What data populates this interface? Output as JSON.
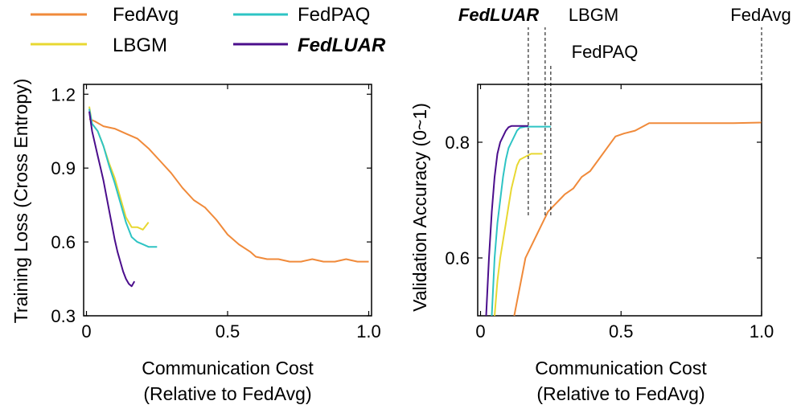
{
  "colors": {
    "FedAvg": "#F08A3A",
    "LBGM": "#E8D832",
    "FedPAQ": "#2EC4C4",
    "FedLUAR": "#4B0E8C"
  },
  "legend": [
    {
      "name": "FedAvg",
      "bold": false
    },
    {
      "name": "FedPAQ",
      "bold": false
    },
    {
      "name": "LBGM",
      "bold": false
    },
    {
      "name": "FedLUAR",
      "bold": true
    }
  ],
  "chart_data": [
    {
      "type": "line",
      "xlabel": "Communication Cost",
      "xlabel2": "(Relative to FedAvg)",
      "ylabel": "Training Loss (Cross Entropy)",
      "xlim": [
        -0.01,
        1.01
      ],
      "ylim": [
        0.3,
        1.24
      ],
      "xticks": [
        0,
        0.5,
        1.0
      ],
      "xtick_labels": [
        "0",
        "0.5",
        "1.0"
      ],
      "yticks": [
        0.3,
        0.6,
        0.9,
        1.2
      ],
      "ytick_labels": [
        "0.3",
        "0.6",
        "0.9",
        "1.2"
      ],
      "series": [
        {
          "name": "FedAvg",
          "x": [
            0.01,
            0.03,
            0.06,
            0.1,
            0.14,
            0.18,
            0.22,
            0.26,
            0.3,
            0.34,
            0.38,
            0.42,
            0.46,
            0.5,
            0.54,
            0.58,
            0.6,
            0.64,
            0.68,
            0.72,
            0.76,
            0.8,
            0.84,
            0.88,
            0.92,
            0.96,
            1.0
          ],
          "y": [
            1.1,
            1.09,
            1.07,
            1.06,
            1.04,
            1.02,
            0.98,
            0.93,
            0.88,
            0.82,
            0.77,
            0.74,
            0.69,
            0.63,
            0.59,
            0.56,
            0.54,
            0.53,
            0.53,
            0.52,
            0.52,
            0.53,
            0.52,
            0.52,
            0.53,
            0.52,
            0.52
          ]
        },
        {
          "name": "LBGM",
          "x": [
            0.01,
            0.02,
            0.04,
            0.06,
            0.08,
            0.1,
            0.12,
            0.14,
            0.16,
            0.18,
            0.2,
            0.22
          ],
          "y": [
            1.15,
            1.08,
            1.05,
            0.99,
            0.92,
            0.86,
            0.78,
            0.7,
            0.66,
            0.66,
            0.65,
            0.68
          ]
        },
        {
          "name": "FedPAQ",
          "x": [
            0.01,
            0.02,
            0.04,
            0.06,
            0.08,
            0.1,
            0.12,
            0.14,
            0.16,
            0.18,
            0.2,
            0.22,
            0.25
          ],
          "y": [
            1.14,
            1.08,
            1.05,
            0.99,
            0.91,
            0.84,
            0.76,
            0.68,
            0.62,
            0.6,
            0.59,
            0.58,
            0.58
          ]
        },
        {
          "name": "FedLUAR",
          "x": [
            0.01,
            0.02,
            0.03,
            0.04,
            0.05,
            0.06,
            0.07,
            0.08,
            0.09,
            0.1,
            0.11,
            0.12,
            0.13,
            0.14,
            0.15,
            0.16,
            0.17
          ],
          "y": [
            1.13,
            1.05,
            1.0,
            0.95,
            0.9,
            0.85,
            0.79,
            0.73,
            0.67,
            0.61,
            0.56,
            0.52,
            0.48,
            0.45,
            0.43,
            0.42,
            0.44
          ]
        }
      ]
    },
    {
      "type": "line",
      "xlabel": "Communication Cost",
      "xlabel2": "(Relative to FedAvg)",
      "ylabel": "Validation Accuracy (0~1)",
      "xlim": [
        -0.01,
        1.0
      ],
      "ylim": [
        0.5,
        0.9
      ],
      "xticks": [
        0,
        0.5,
        1.0
      ],
      "xtick_labels": [
        "0",
        "0.5",
        "1.0"
      ],
      "yticks": [
        0.6,
        0.8
      ],
      "ytick_labels": [
        "0.6",
        "0.8"
      ],
      "series": [
        {
          "name": "FedAvg",
          "x": [
            0.12,
            0.14,
            0.16,
            0.18,
            0.2,
            0.22,
            0.24,
            0.26,
            0.28,
            0.3,
            0.33,
            0.36,
            0.39,
            0.42,
            0.45,
            0.48,
            0.51,
            0.55,
            0.6,
            0.7,
            0.8,
            0.9,
            1.0
          ],
          "y": [
            0.5,
            0.55,
            0.6,
            0.62,
            0.64,
            0.66,
            0.68,
            0.69,
            0.7,
            0.71,
            0.72,
            0.74,
            0.75,
            0.77,
            0.79,
            0.81,
            0.815,
            0.82,
            0.833,
            0.833,
            0.833,
            0.833,
            0.834
          ]
        },
        {
          "name": "LBGM",
          "x": [
            0.05,
            0.06,
            0.07,
            0.08,
            0.09,
            0.1,
            0.11,
            0.12,
            0.13,
            0.14,
            0.16,
            0.18,
            0.2,
            0.22
          ],
          "y": [
            0.5,
            0.56,
            0.6,
            0.63,
            0.66,
            0.69,
            0.72,
            0.74,
            0.76,
            0.77,
            0.775,
            0.78,
            0.78,
            0.78
          ]
        },
        {
          "name": "FedPAQ",
          "x": [
            0.04,
            0.05,
            0.06,
            0.07,
            0.08,
            0.09,
            0.1,
            0.11,
            0.12,
            0.13,
            0.14,
            0.16,
            0.18,
            0.2,
            0.22,
            0.25
          ],
          "y": [
            0.5,
            0.6,
            0.66,
            0.7,
            0.74,
            0.77,
            0.79,
            0.8,
            0.81,
            0.82,
            0.825,
            0.827,
            0.827,
            0.827,
            0.827,
            0.827
          ]
        },
        {
          "name": "FedLUAR",
          "x": [
            0.02,
            0.03,
            0.04,
            0.05,
            0.06,
            0.07,
            0.08,
            0.09,
            0.1,
            0.11,
            0.12,
            0.13,
            0.14,
            0.15,
            0.16,
            0.17
          ],
          "y": [
            0.5,
            0.6,
            0.68,
            0.74,
            0.78,
            0.8,
            0.81,
            0.82,
            0.826,
            0.828,
            0.828,
            0.828,
            0.828,
            0.828,
            0.828,
            0.828
          ]
        }
      ],
      "annotations": [
        {
          "text": "FedLUAR",
          "x": 0.17,
          "bold": true
        },
        {
          "text": "LBGM",
          "x": 0.23,
          "bold": false
        },
        {
          "text": "FedPAQ",
          "x": 0.25,
          "bold": false
        },
        {
          "text": "FedAvg",
          "x": 1.0,
          "bold": false
        }
      ]
    }
  ]
}
